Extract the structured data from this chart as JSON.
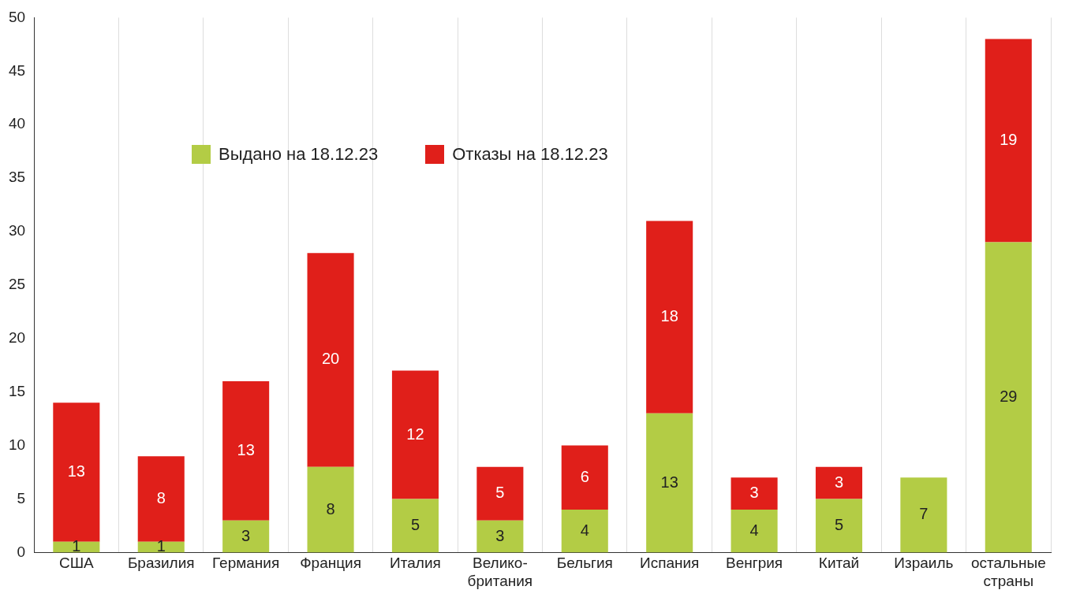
{
  "chart_data": {
    "type": "bar",
    "stacked": true,
    "categories": [
      "США",
      "Бразилия",
      "Германия",
      "Франция",
      "Италия",
      "Велико-\nбритания",
      "Бельгия",
      "Испания",
      "Венгрия",
      "Китай",
      "Израиль",
      "остальные\nстраны"
    ],
    "series": [
      {
        "name": "Выдано на 18.12.23",
        "color": "#b3cc45",
        "values": [
          1,
          1,
          3,
          8,
          5,
          3,
          4,
          13,
          4,
          5,
          7,
          29
        ]
      },
      {
        "name": "Отказы на 18.12.23",
        "color": "#e01f1a",
        "values": [
          13,
          8,
          13,
          20,
          12,
          5,
          6,
          18,
          3,
          3,
          null,
          19
        ]
      }
    ],
    "ylim": [
      0,
      50
    ],
    "yticks": [
      0,
      5,
      10,
      15,
      20,
      25,
      30,
      35,
      40,
      45,
      50
    ],
    "grid": "x",
    "legend": "top left",
    "data_labels": true
  }
}
